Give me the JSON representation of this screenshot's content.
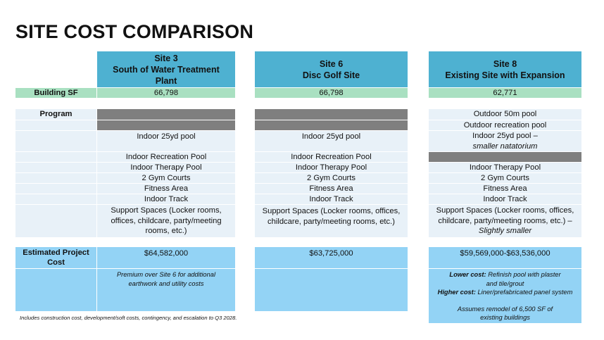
{
  "title": "SITE COST COMPARISON",
  "columns": [
    {
      "line1": "Site 3",
      "line2": "South of Water Treatment",
      "line3": "Plant"
    },
    {
      "line1": "Site 6",
      "line2": "Disc Golf Site"
    },
    {
      "line1": "Site 8",
      "line2": "Existing Site with Expansion"
    }
  ],
  "rows": {
    "building_sf": {
      "label": "Building SF",
      "values": [
        "66,798",
        "66,798",
        "62,771"
      ]
    },
    "program": {
      "label": "Program",
      "site3": [
        "",
        "",
        "Indoor 25yd pool",
        "Indoor Recreation Pool",
        "Indoor Therapy Pool",
        "2 Gym Courts",
        "Fitness Area",
        "Indoor Track",
        "Support Spaces (Locker rooms, offices, childcare, party/meeting rooms, etc.)"
      ],
      "site6": [
        "",
        "",
        "Indoor 25yd pool",
        "Indoor Recreation Pool",
        "Indoor Therapy Pool",
        "2 Gym Courts",
        "Fitness Area",
        "Indoor Track",
        "Support Spaces (Locker rooms, offices, childcare, party/meeting rooms, etc.)"
      ],
      "site8": {
        "outdoor_50m": "Outdoor 50m pool",
        "outdoor_rec": "Outdoor recreation pool",
        "indoor_pool": "Indoor 25yd pool –",
        "indoor_pool_note": "smaller natatorium",
        "therapy": "Indoor Therapy Pool",
        "gym": "2 Gym Courts",
        "fitness": "Fitness Area",
        "track": "Indoor Track",
        "support": "Support Spaces (Locker rooms, offices, childcare, party/meeting rooms, etc.) –",
        "support_note": "Slightly smaller"
      }
    },
    "estimated_cost": {
      "label_line1": "Estimated Project",
      "label_line2": "Cost",
      "values": [
        "$64,582,000",
        "$63,725,000",
        "$59,569,000-$63,536,000"
      ]
    },
    "notes": {
      "site3": "Premium over Site 6 for additional earthwork and utility costs",
      "site8_lower_label": "Lower cost:",
      "site8_lower_text": "Refinish pool with plaster",
      "site8_lower_text2": "and tile/grout",
      "site8_higher_label": "Higher cost:",
      "site8_higher_text": "Liner/prefabricated panel system",
      "site8_assumes": "Assumes remodel of 6,500 SF of",
      "site8_assumes2": "existing buildings"
    }
  },
  "footnote": "Includes construction cost, development/soft costs, contingency, and escalation to Q3 2028."
}
